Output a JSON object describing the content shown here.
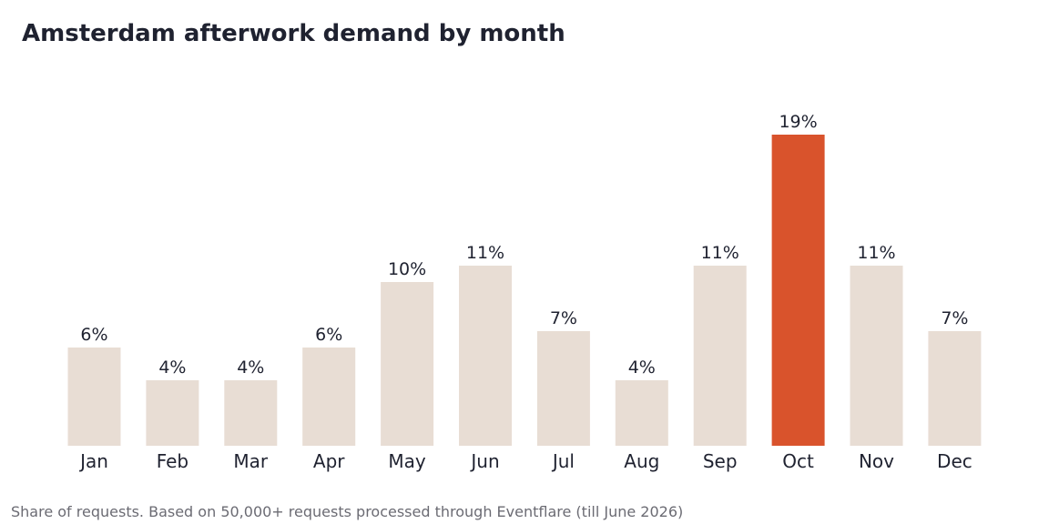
{
  "title": "Amsterdam afterwork demand by month",
  "footnote": "Share of requests. Based on 50,000+ requests processed through Eventflare (till June 2026)",
  "colors": {
    "bar": "#e8ddd4",
    "highlight": "#d9532c",
    "text": "#1f2230",
    "footnote": "#6b6b73"
  },
  "chart_data": {
    "type": "bar",
    "title": "Amsterdam afterwork demand by month",
    "xlabel": "",
    "ylabel": "",
    "categories": [
      "Jan",
      "Feb",
      "Mar",
      "Apr",
      "May",
      "Jun",
      "Jul",
      "Aug",
      "Sep",
      "Oct",
      "Nov",
      "Dec"
    ],
    "values": [
      6,
      4,
      4,
      6,
      10,
      11,
      7,
      4,
      11,
      19,
      11,
      7
    ],
    "value_labels": [
      "6%",
      "4%",
      "4%",
      "6%",
      "10%",
      "11%",
      "7%",
      "4%",
      "11%",
      "19%",
      "11%",
      "7%"
    ],
    "unit": "%",
    "highlight_category": "Oct",
    "ylim": [
      0,
      19
    ],
    "grid": false,
    "legend": "none"
  }
}
